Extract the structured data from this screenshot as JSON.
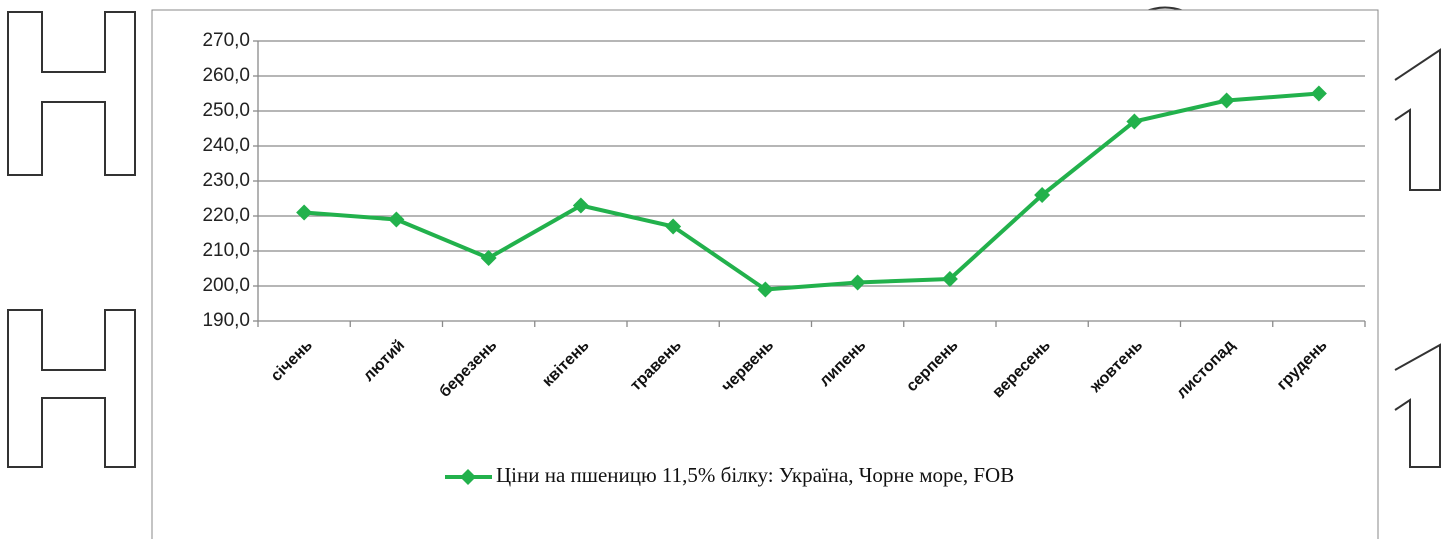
{
  "chart_data": {
    "type": "line",
    "categories": [
      "січень",
      "лютий",
      "березень",
      "квітень",
      "травень",
      "червень",
      "липень",
      "серпень",
      "вересень",
      "жовтень",
      "листопад",
      "грудень"
    ],
    "series": [
      {
        "name": "Ціни на пшеницю 11,5% білку: Україна, Чорне море, FOB",
        "color": "#22b14c",
        "values": [
          221,
          219,
          208,
          223,
          217,
          199,
          201,
          202,
          226,
          247,
          253,
          255
        ]
      }
    ],
    "ylim": [
      190,
      270
    ],
    "yticks": [
      {
        "value": 190,
        "label": "190,0"
      },
      {
        "value": 200,
        "label": "200,0"
      },
      {
        "value": 210,
        "label": "210,0"
      },
      {
        "value": 220,
        "label": "220,0"
      },
      {
        "value": 230,
        "label": "230,0"
      },
      {
        "value": 240,
        "label": "240,0"
      },
      {
        "value": 250,
        "label": "250,0"
      },
      {
        "value": 260,
        "label": "260,0"
      },
      {
        "value": 270,
        "label": "270,0"
      }
    ],
    "grid": true,
    "legend": "bottom"
  }
}
